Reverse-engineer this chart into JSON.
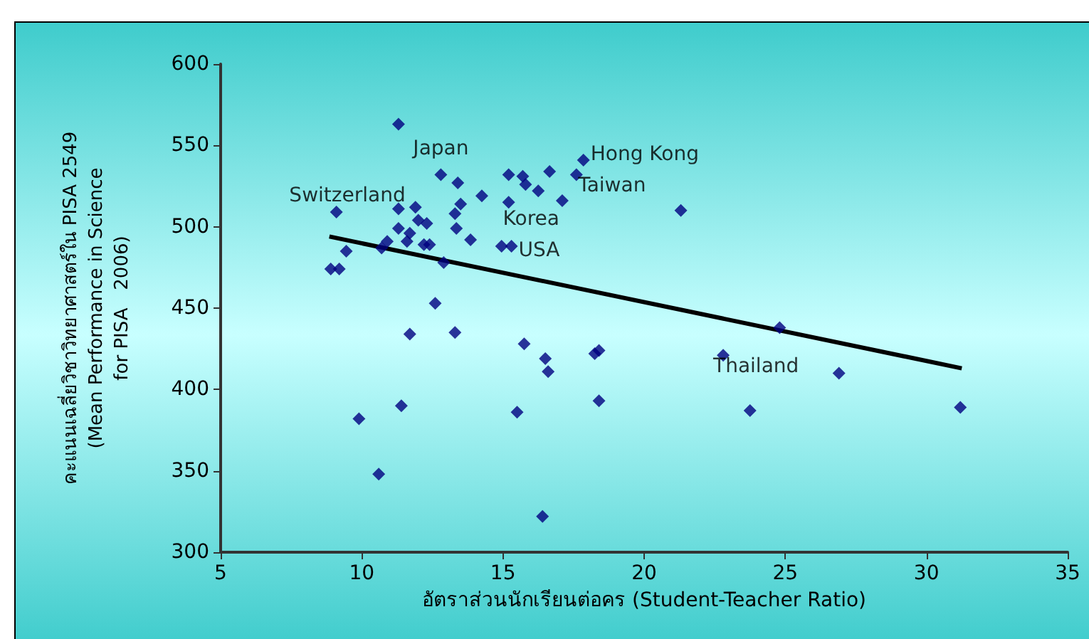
{
  "chart_data": {
    "type": "scatter",
    "xlabel": "อัตราส่วนนักเรียนต่อคร (Student-Teacher Ratio)",
    "ylabel": "คะแนนเฉลี่ยวิชาวิทยาศาสตร์ใน PISA 2549\n(Mean Performance in Science\nfor PISA   2006)",
    "xlim": [
      5,
      35
    ],
    "xticks": [
      5,
      10,
      15,
      20,
      25,
      30,
      35
    ],
    "ylim": [
      300,
      600
    ],
    "yticks": [
      300,
      350,
      400,
      450,
      500,
      550,
      600
    ],
    "grid": false,
    "marker": "diamond",
    "series": [
      {
        "color": "#000080",
        "x": [
          11.3,
          9.1,
          11.3,
          11.9,
          12.0,
          12.3,
          11.3,
          11.7,
          11.6,
          10.9,
          10.7,
          12.2,
          12.4,
          9.45,
          8.9,
          9.2,
          12.6,
          11.7,
          11.4,
          9.9,
          10.6,
          12.8,
          13.4,
          14.25,
          15.2,
          15.7,
          15.8,
          16.25,
          16.65,
          17.6,
          17.85,
          17.1,
          15.2,
          13.5,
          13.3,
          13.35,
          13.85,
          14.95,
          15.3,
          12.9,
          13.3,
          15.75,
          16.5,
          16.6,
          18.25,
          18.4,
          18.4,
          15.5,
          16.4,
          21.3,
          24.8,
          22.8,
          23.75,
          26.9,
          31.2
        ],
        "values": [
          563,
          509,
          511,
          512,
          504,
          502,
          499,
          496,
          491,
          491,
          487,
          489,
          489,
          485,
          474,
          474,
          453,
          434,
          390,
          382,
          348,
          532,
          527,
          519,
          532,
          531,
          526,
          522,
          534,
          532,
          541,
          516,
          515,
          514,
          508,
          499,
          492,
          488,
          488,
          478,
          435,
          428,
          419,
          411,
          422,
          424,
          393,
          386,
          322,
          510,
          438,
          421,
          387,
          410,
          389
        ]
      },
      {
        "type": "line",
        "color": "#000000",
        "marker": "none",
        "line_style": "solid",
        "x": [
          8.85,
          31.25
        ],
        "values": [
          494,
          413
        ]
      }
    ],
    "annotations": [
      {
        "text": "Japan",
        "x": 12.8,
        "y": 532
      },
      {
        "text": "Switzerland",
        "x": 11.9,
        "y": 512
      },
      {
        "text": "Hong Kong",
        "x": 17.85,
        "y": 541
      },
      {
        "text": "Taiwan",
        "x": 17.6,
        "y": 532
      },
      {
        "text": "Korea",
        "x": 16.25,
        "y": 522
      },
      {
        "text": "USA",
        "x": 15.3,
        "y": 488
      },
      {
        "text": "Thailand",
        "x": 22.8,
        "y": 421
      }
    ]
  }
}
